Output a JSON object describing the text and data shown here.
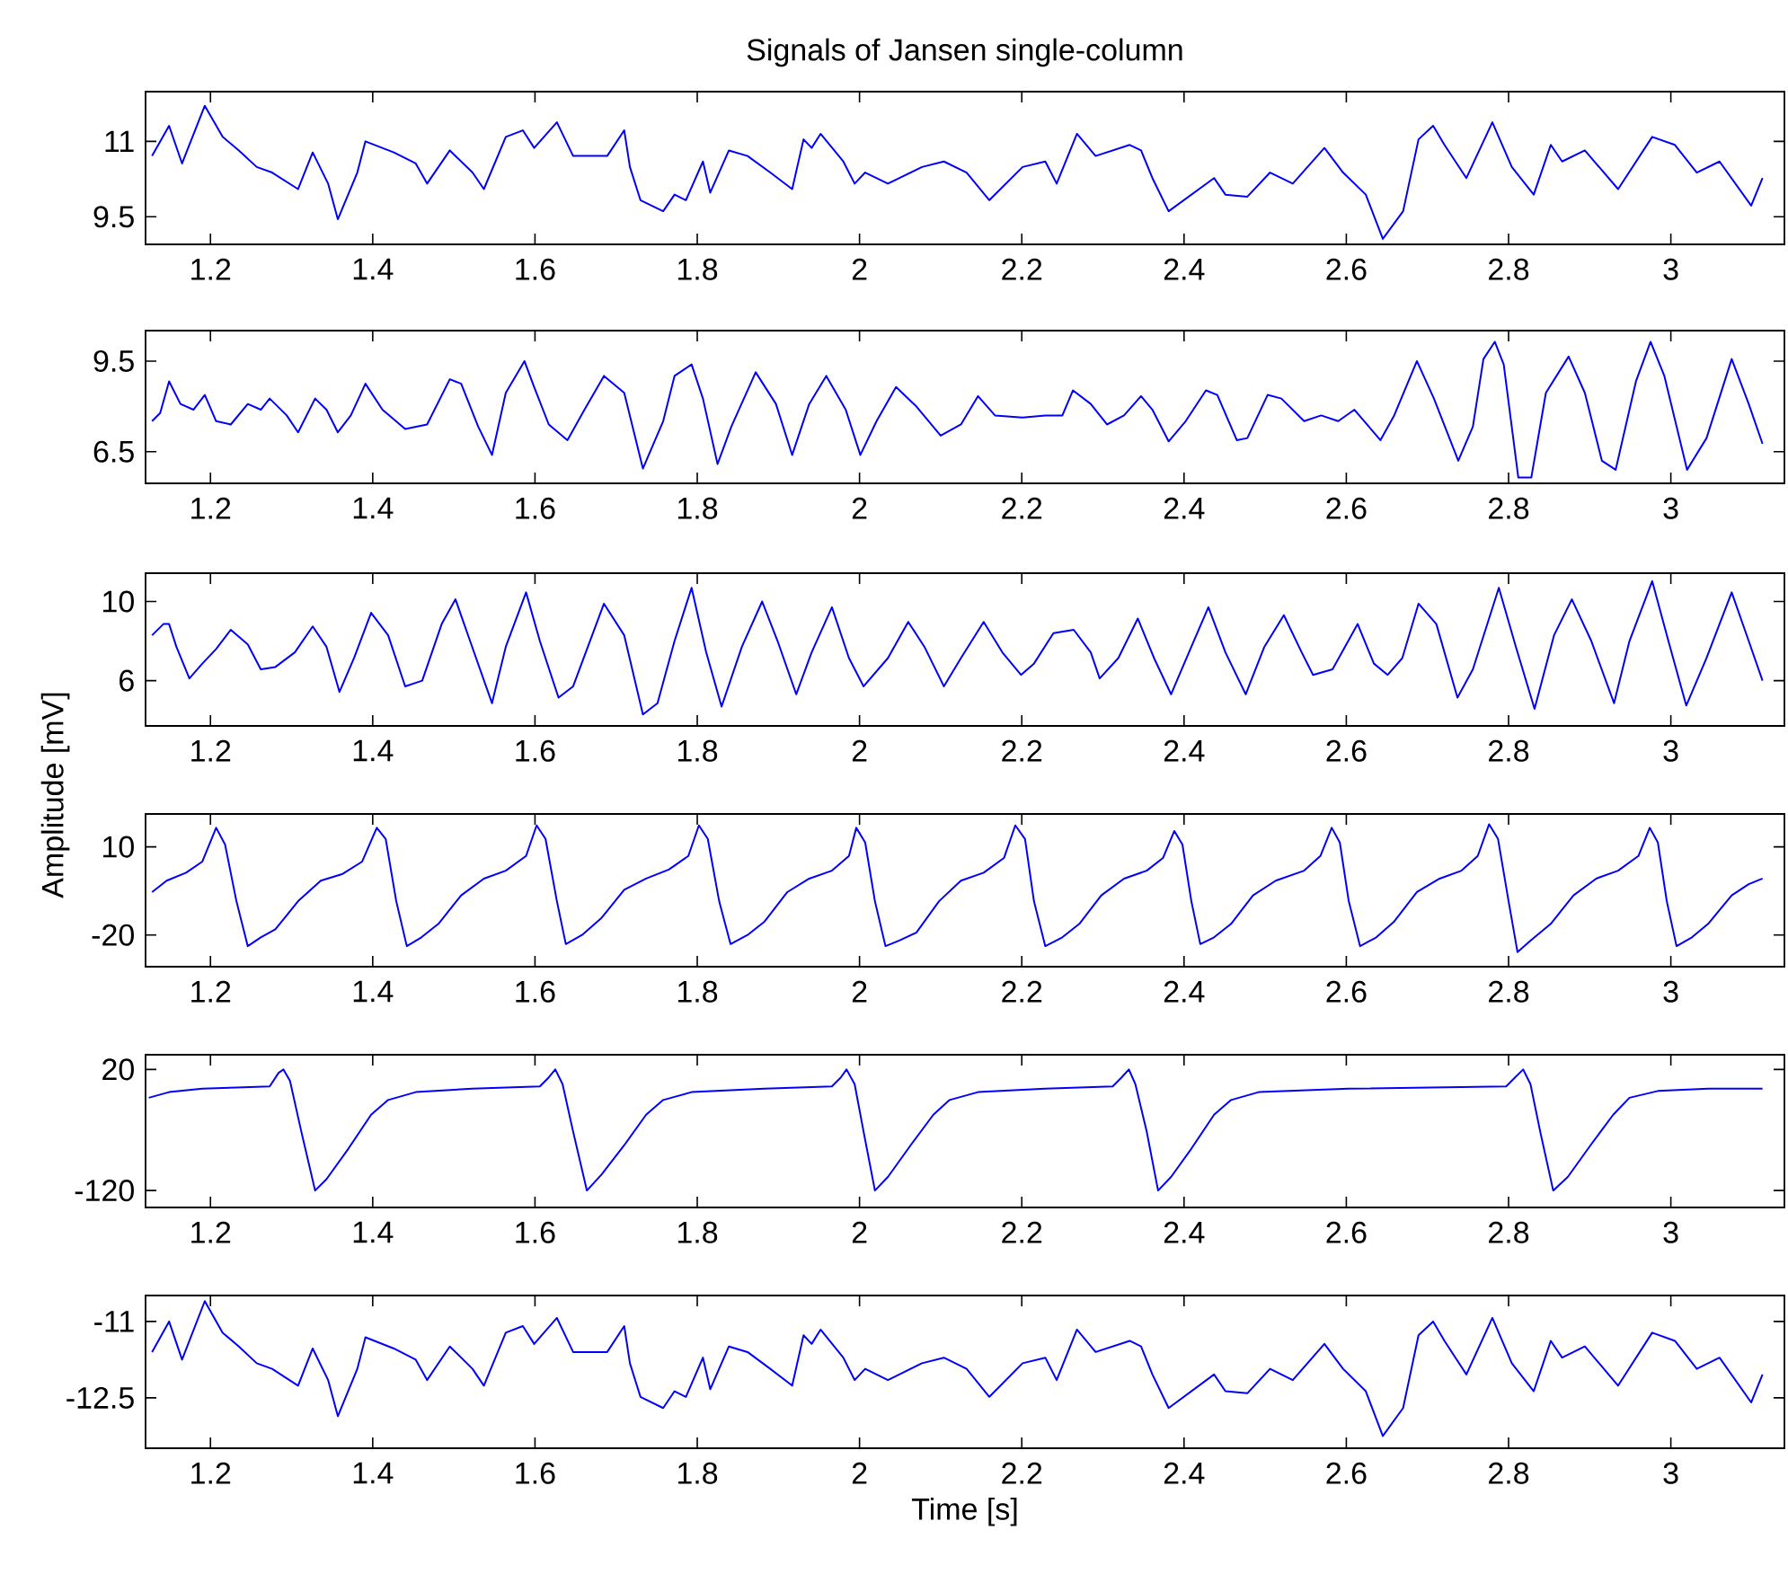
{
  "chart_data": [
    {
      "type": "line",
      "title": "Signals of Jansen single-column",
      "color": "#0000ff",
      "xlim": [
        1.12,
        3.14
      ],
      "ylim": [
        8.95,
        11.99
      ],
      "xticks": [
        1.2,
        1.4,
        1.6,
        1.8,
        2,
        2.2,
        2.4,
        2.6,
        2.8,
        3
      ],
      "yticks": [
        9.5,
        11
      ],
      "x": [
        1.128,
        1.149,
        1.165,
        1.193,
        1.215,
        1.235,
        1.257,
        1.276,
        1.308,
        1.326,
        1.345,
        1.357,
        1.381,
        1.391,
        1.426,
        1.453,
        1.467,
        1.495,
        1.523,
        1.537,
        1.564,
        1.585,
        1.599,
        1.627,
        1.647,
        1.689,
        1.71,
        1.717,
        1.73,
        1.758,
        1.772,
        1.786,
        1.807,
        1.816,
        1.839,
        1.862,
        1.89,
        1.917,
        1.931,
        1.941,
        1.952,
        1.98,
        1.994,
        2.007,
        2.035,
        2.077,
        2.104,
        2.132,
        2.16,
        2.201,
        2.229,
        2.243,
        2.268,
        2.291,
        2.333,
        2.347,
        2.361,
        2.381,
        2.409,
        2.437,
        2.451,
        2.478,
        2.506,
        2.534,
        2.573,
        2.596,
        2.624,
        2.645,
        2.67,
        2.689,
        2.707,
        2.721,
        2.748,
        2.78,
        2.804,
        2.831,
        2.852,
        2.866,
        2.894,
        2.935,
        2.977,
        3.005,
        3.032,
        3.06,
        3.099,
        3.113
      ],
      "values": [
        10.71,
        11.31,
        10.56,
        11.71,
        11.09,
        10.82,
        10.49,
        10.38,
        10.05,
        10.78,
        10.16,
        9.45,
        10.38,
        11.0,
        10.78,
        10.56,
        10.16,
        10.82,
        10.38,
        10.05,
        11.09,
        11.22,
        10.87,
        11.38,
        10.71,
        10.71,
        11.22,
        10.49,
        9.83,
        9.61,
        9.94,
        9.83,
        10.6,
        9.98,
        10.82,
        10.71,
        10.38,
        10.05,
        11.04,
        10.87,
        11.15,
        10.6,
        10.16,
        10.38,
        10.16,
        10.49,
        10.6,
        10.38,
        9.83,
        10.49,
        10.6,
        10.16,
        11.15,
        10.71,
        10.93,
        10.82,
        10.27,
        9.61,
        9.94,
        10.27,
        9.94,
        9.9,
        10.38,
        10.16,
        10.87,
        10.38,
        9.94,
        9.06,
        9.61,
        11.04,
        11.31,
        10.93,
        10.27,
        11.38,
        10.49,
        9.94,
        10.93,
        10.6,
        10.82,
        10.05,
        11.09,
        10.93,
        10.38,
        10.6,
        9.72,
        10.27
      ]
    },
    {
      "type": "line",
      "color": "#0000ff",
      "xlim": [
        1.12,
        3.14
      ],
      "ylim": [
        5.45,
        10.51
      ],
      "xticks": [
        1.2,
        1.4,
        1.6,
        1.8,
        2,
        2.2,
        2.4,
        2.6,
        2.8,
        3
      ],
      "yticks": [
        6.5,
        9.5
      ],
      "x": [
        1.128,
        1.138,
        1.149,
        1.163,
        1.179,
        1.193,
        1.207,
        1.225,
        1.246,
        1.262,
        1.273,
        1.294,
        1.308,
        1.329,
        1.343,
        1.357,
        1.373,
        1.391,
        1.412,
        1.44,
        1.467,
        1.495,
        1.509,
        1.53,
        1.547,
        1.564,
        1.587,
        1.599,
        1.617,
        1.64,
        1.661,
        1.685,
        1.71,
        1.733,
        1.758,
        1.772,
        1.793,
        1.807,
        1.825,
        1.842,
        1.872,
        1.897,
        1.917,
        1.938,
        1.959,
        1.983,
        2.001,
        2.021,
        2.045,
        2.07,
        2.1,
        2.125,
        2.146,
        2.167,
        2.201,
        2.229,
        2.25,
        2.263,
        2.285,
        2.305,
        2.326,
        2.347,
        2.361,
        2.381,
        2.402,
        2.427,
        2.441,
        2.465,
        2.478,
        2.503,
        2.52,
        2.548,
        2.569,
        2.59,
        2.61,
        2.642,
        2.659,
        2.687,
        2.708,
        2.738,
        2.756,
        2.769,
        2.783,
        2.794,
        2.812,
        2.828,
        2.846,
        2.874,
        2.894,
        2.915,
        2.932,
        2.957,
        2.975,
        2.992,
        3.02,
        3.044,
        3.075,
        3.096,
        3.113
      ],
      "values": [
        7.51,
        7.78,
        8.83,
        8.08,
        7.89,
        8.38,
        7.51,
        7.4,
        8.08,
        7.89,
        8.26,
        7.7,
        7.14,
        8.26,
        7.89,
        7.14,
        7.7,
        8.75,
        7.89,
        7.25,
        7.4,
        8.9,
        8.75,
        7.33,
        6.39,
        8.45,
        9.5,
        8.64,
        7.4,
        6.88,
        7.89,
        9.01,
        8.45,
        5.94,
        7.51,
        9.01,
        9.39,
        8.26,
        6.09,
        7.33,
        9.13,
        8.08,
        6.39,
        8.08,
        9.01,
        7.89,
        6.39,
        7.51,
        8.64,
        8.0,
        7.03,
        7.4,
        8.34,
        7.7,
        7.63,
        7.7,
        7.7,
        8.53,
        8.08,
        7.4,
        7.7,
        8.34,
        7.89,
        6.84,
        7.51,
        8.53,
        8.38,
        6.88,
        6.95,
        8.38,
        8.26,
        7.51,
        7.7,
        7.51,
        7.89,
        6.88,
        7.7,
        9.5,
        8.26,
        6.2,
        7.33,
        9.57,
        10.14,
        9.39,
        5.64,
        5.64,
        8.45,
        9.65,
        8.45,
        6.2,
        5.9,
        8.83,
        10.14,
        9.01,
        5.9,
        6.95,
        9.57,
        8.08,
        6.76
      ]
    },
    {
      "type": "line",
      "ylabel": "Amplitude [mV]",
      "color": "#0000ff",
      "xlim": [
        1.12,
        3.14
      ],
      "ylim": [
        3.71,
        11.43
      ],
      "xticks": [
        1.2,
        1.4,
        1.6,
        1.8,
        2,
        2.2,
        2.4,
        2.6,
        2.8,
        3
      ],
      "yticks": [
        6,
        10
      ],
      "x": [
        1.128,
        1.142,
        1.149,
        1.158,
        1.174,
        1.19,
        1.207,
        1.225,
        1.246,
        1.262,
        1.28,
        1.304,
        1.326,
        1.343,
        1.359,
        1.377,
        1.398,
        1.419,
        1.44,
        1.461,
        1.485,
        1.502,
        1.52,
        1.547,
        1.564,
        1.589,
        1.606,
        1.629,
        1.647,
        1.685,
        1.71,
        1.733,
        1.751,
        1.772,
        1.793,
        1.811,
        1.83,
        1.855,
        1.88,
        1.899,
        1.922,
        1.941,
        1.966,
        1.987,
        2.005,
        2.035,
        2.06,
        2.08,
        2.104,
        2.125,
        2.153,
        2.176,
        2.199,
        2.215,
        2.239,
        2.264,
        2.285,
        2.296,
        2.319,
        2.343,
        2.363,
        2.384,
        2.409,
        2.43,
        2.451,
        2.476,
        2.499,
        2.523,
        2.545,
        2.559,
        2.583,
        2.614,
        2.634,
        2.651,
        2.669,
        2.689,
        2.711,
        2.737,
        2.756,
        2.788,
        2.809,
        2.832,
        2.856,
        2.878,
        2.902,
        2.93,
        2.949,
        2.977,
        2.997,
        3.019,
        3.044,
        3.075,
        3.096,
        3.113
      ],
      "values": [
        8.29,
        8.86,
        8.86,
        7.71,
        6.11,
        6.86,
        7.6,
        8.57,
        7.83,
        6.57,
        6.69,
        7.43,
        8.74,
        7.71,
        5.43,
        7.14,
        9.43,
        8.29,
        5.71,
        6.0,
        8.86,
        10.11,
        8.0,
        4.86,
        7.71,
        10.46,
        8.0,
        5.14,
        5.71,
        9.89,
        8.29,
        4.29,
        4.86,
        8.0,
        10.69,
        7.43,
        4.69,
        7.71,
        10.0,
        8.0,
        5.31,
        7.43,
        9.71,
        7.14,
        5.71,
        7.14,
        8.97,
        7.71,
        5.71,
        7.14,
        8.97,
        7.43,
        6.29,
        6.86,
        8.4,
        8.57,
        7.43,
        6.11,
        7.14,
        9.14,
        7.14,
        5.31,
        7.71,
        9.71,
        7.43,
        5.31,
        7.71,
        9.31,
        7.43,
        6.29,
        6.57,
        8.86,
        6.86,
        6.29,
        7.14,
        9.89,
        8.86,
        5.14,
        6.57,
        10.69,
        7.71,
        4.57,
        8.29,
        10.11,
        8.0,
        4.86,
        8.0,
        11.03,
        8.0,
        4.74,
        7.14,
        10.46,
        8.0,
        6.0
      ]
    },
    {
      "type": "line",
      "color": "#0000ff",
      "xlim": [
        1.12,
        3.14
      ],
      "ylim": [
        -30.8,
        21.2
      ],
      "xticks": [
        1.2,
        1.4,
        1.6,
        1.8,
        2,
        2.2,
        2.4,
        2.6,
        2.8,
        3
      ],
      "yticks": [
        -20,
        10
      ],
      "x": [
        1.128,
        1.146,
        1.17,
        1.19,
        1.207,
        1.218,
        1.232,
        1.246,
        1.262,
        1.28,
        1.308,
        1.336,
        1.363,
        1.387,
        1.405,
        1.416,
        1.429,
        1.442,
        1.46,
        1.481,
        1.509,
        1.537,
        1.564,
        1.589,
        1.602,
        1.613,
        1.627,
        1.638,
        1.658,
        1.682,
        1.71,
        1.737,
        1.765,
        1.789,
        1.802,
        1.813,
        1.827,
        1.841,
        1.862,
        1.883,
        1.911,
        1.938,
        1.966,
        1.987,
        1.996,
        2.007,
        2.019,
        2.032,
        2.049,
        2.07,
        2.098,
        2.125,
        2.153,
        2.178,
        2.192,
        2.204,
        2.215,
        2.229,
        2.25,
        2.271,
        2.298,
        2.326,
        2.354,
        2.374,
        2.388,
        2.398,
        2.409,
        2.42,
        2.437,
        2.458,
        2.485,
        2.513,
        2.548,
        2.568,
        2.582,
        2.592,
        2.603,
        2.617,
        2.637,
        2.659,
        2.687,
        2.715,
        2.742,
        2.762,
        2.776,
        2.787,
        2.8,
        2.811,
        2.827,
        2.852,
        2.88,
        2.908,
        2.935,
        2.96,
        2.974,
        2.984,
        2.995,
        3.007,
        3.026,
        3.046,
        3.075,
        3.096,
        3.113
      ],
      "values": [
        -5.4,
        -1.5,
        1.2,
        5.0,
        16.5,
        10.8,
        -8.5,
        -23.8,
        -20.8,
        -18.1,
        -8.5,
        -1.5,
        0.8,
        5.0,
        16.5,
        12.7,
        -8.5,
        -23.8,
        -20.8,
        -16.2,
        -6.5,
        -0.8,
        1.9,
        6.9,
        17.3,
        12.7,
        -8.5,
        -23.1,
        -20.0,
        -14.2,
        -4.6,
        -0.8,
        2.3,
        6.9,
        17.3,
        12.7,
        -8.5,
        -23.1,
        -20.0,
        -15.4,
        -5.4,
        -0.8,
        1.9,
        6.9,
        16.5,
        11.5,
        -8.5,
        -23.8,
        -21.9,
        -19.2,
        -8.5,
        -1.5,
        1.2,
        6.2,
        17.3,
        12.7,
        -8.5,
        -23.8,
        -20.8,
        -16.2,
        -6.5,
        -0.8,
        1.9,
        6.2,
        15.4,
        10.8,
        -8.5,
        -23.1,
        -20.8,
        -16.2,
        -6.5,
        -1.5,
        1.9,
        6.9,
        16.5,
        11.5,
        -8.5,
        -23.8,
        -20.8,
        -15.4,
        -5.4,
        -0.8,
        1.9,
        6.9,
        17.7,
        12.7,
        -8.5,
        -25.8,
        -21.9,
        -16.2,
        -6.5,
        -0.8,
        1.9,
        6.9,
        16.5,
        11.5,
        -8.5,
        -23.8,
        -20.8,
        -16.2,
        -6.5,
        -2.7,
        -0.8
      ]
    },
    {
      "type": "line",
      "color": "#0000ff",
      "xlim": [
        1.12,
        3.14
      ],
      "ylim": [
        -139.6,
        37
      ],
      "xticks": [
        1.2,
        1.4,
        1.6,
        1.8,
        2,
        2.2,
        2.4,
        2.6,
        2.8,
        3
      ],
      "yticks": [
        -120,
        20
      ],
      "x": [
        1.124,
        1.149,
        1.19,
        1.232,
        1.273,
        1.284,
        1.29,
        1.298,
        1.312,
        1.329,
        1.343,
        1.37,
        1.398,
        1.419,
        1.453,
        1.523,
        1.606,
        1.617,
        1.625,
        1.634,
        1.647,
        1.664,
        1.682,
        1.71,
        1.737,
        1.758,
        1.793,
        1.883,
        1.966,
        1.977,
        1.984,
        1.994,
        2.005,
        2.019,
        2.035,
        2.063,
        2.091,
        2.111,
        2.146,
        2.229,
        2.312,
        2.323,
        2.332,
        2.34,
        2.354,
        2.368,
        2.384,
        2.409,
        2.437,
        2.458,
        2.492,
        2.603,
        2.797,
        2.808,
        2.818,
        2.827,
        2.839,
        2.855,
        2.873,
        2.901,
        2.929,
        2.949,
        2.984,
        3.046,
        3.113
      ],
      "values": [
        -12.7,
        -6.2,
        -2.2,
        -0.9,
        0.4,
        16.1,
        20,
        6.9,
        -51.9,
        -120,
        -106.9,
        -71.6,
        -32.3,
        -15.3,
        -6.2,
        -2.2,
        0.4,
        10.8,
        20,
        3.0,
        -51.9,
        -120,
        -101.6,
        -67.6,
        -32.3,
        -15.3,
        -6.2,
        -2.2,
        0.4,
        10.8,
        20,
        3.0,
        -51.9,
        -120,
        -104.3,
        -67.6,
        -32.3,
        -15.3,
        -6.2,
        -2.2,
        0.4,
        10.8,
        20,
        3.0,
        -51.9,
        -120,
        -104.3,
        -71.6,
        -32.3,
        -15.3,
        -6.2,
        -2.2,
        0.4,
        10.8,
        20,
        3.0,
        -51.9,
        -120,
        -104.3,
        -67.6,
        -32.3,
        -12.7,
        -4.9,
        -2.2,
        -2.2
      ]
    },
    {
      "type": "line",
      "xlabel": "Time [s]",
      "color": "#0000ff",
      "xlim": [
        1.12,
        3.14
      ],
      "ylim": [
        -13.49,
        -10.49
      ],
      "xticks": [
        1.2,
        1.4,
        1.6,
        1.8,
        2,
        2.2,
        2.4,
        2.6,
        2.8,
        3
      ],
      "yticks": [
        -12.5,
        -11
      ],
      "x": [
        1.128,
        1.149,
        1.165,
        1.193,
        1.215,
        1.235,
        1.257,
        1.276,
        1.308,
        1.326,
        1.345,
        1.357,
        1.381,
        1.391,
        1.426,
        1.453,
        1.467,
        1.495,
        1.523,
        1.537,
        1.564,
        1.585,
        1.599,
        1.627,
        1.647,
        1.689,
        1.71,
        1.717,
        1.73,
        1.758,
        1.772,
        1.786,
        1.807,
        1.816,
        1.839,
        1.862,
        1.89,
        1.917,
        1.931,
        1.941,
        1.952,
        1.98,
        1.994,
        2.007,
        2.035,
        2.077,
        2.104,
        2.132,
        2.16,
        2.201,
        2.229,
        2.243,
        2.268,
        2.291,
        2.333,
        2.347,
        2.361,
        2.381,
        2.409,
        2.437,
        2.451,
        2.478,
        2.506,
        2.534,
        2.573,
        2.596,
        2.624,
        2.645,
        2.67,
        2.689,
        2.707,
        2.721,
        2.748,
        2.78,
        2.804,
        2.831,
        2.852,
        2.866,
        2.894,
        2.935,
        2.977,
        3.005,
        3.032,
        3.06,
        3.099,
        3.113
      ],
      "values": [
        -11.6,
        -11.0,
        -11.75,
        -10.6,
        -11.22,
        -11.49,
        -11.82,
        -11.93,
        -12.26,
        -11.53,
        -12.15,
        -12.86,
        -11.93,
        -11.31,
        -11.53,
        -11.75,
        -12.15,
        -11.49,
        -11.93,
        -12.26,
        -11.22,
        -11.09,
        -11.44,
        -10.93,
        -11.6,
        -11.6,
        -11.09,
        -11.82,
        -12.48,
        -12.7,
        -12.37,
        -12.48,
        -11.71,
        -12.33,
        -11.49,
        -11.6,
        -11.93,
        -12.26,
        -11.27,
        -11.44,
        -11.16,
        -11.71,
        -12.15,
        -11.93,
        -12.15,
        -11.82,
        -11.71,
        -11.93,
        -12.48,
        -11.82,
        -11.71,
        -12.15,
        -11.16,
        -11.6,
        -11.38,
        -11.49,
        -12.04,
        -12.7,
        -12.37,
        -12.04,
        -12.37,
        -12.41,
        -11.93,
        -12.15,
        -11.44,
        -11.93,
        -12.37,
        -13.25,
        -12.7,
        -11.27,
        -11.0,
        -11.38,
        -12.04,
        -10.93,
        -11.82,
        -12.37,
        -11.38,
        -11.71,
        -11.49,
        -12.26,
        -11.22,
        -11.38,
        -11.93,
        -11.71,
        -12.59,
        -12.04
      ]
    }
  ]
}
